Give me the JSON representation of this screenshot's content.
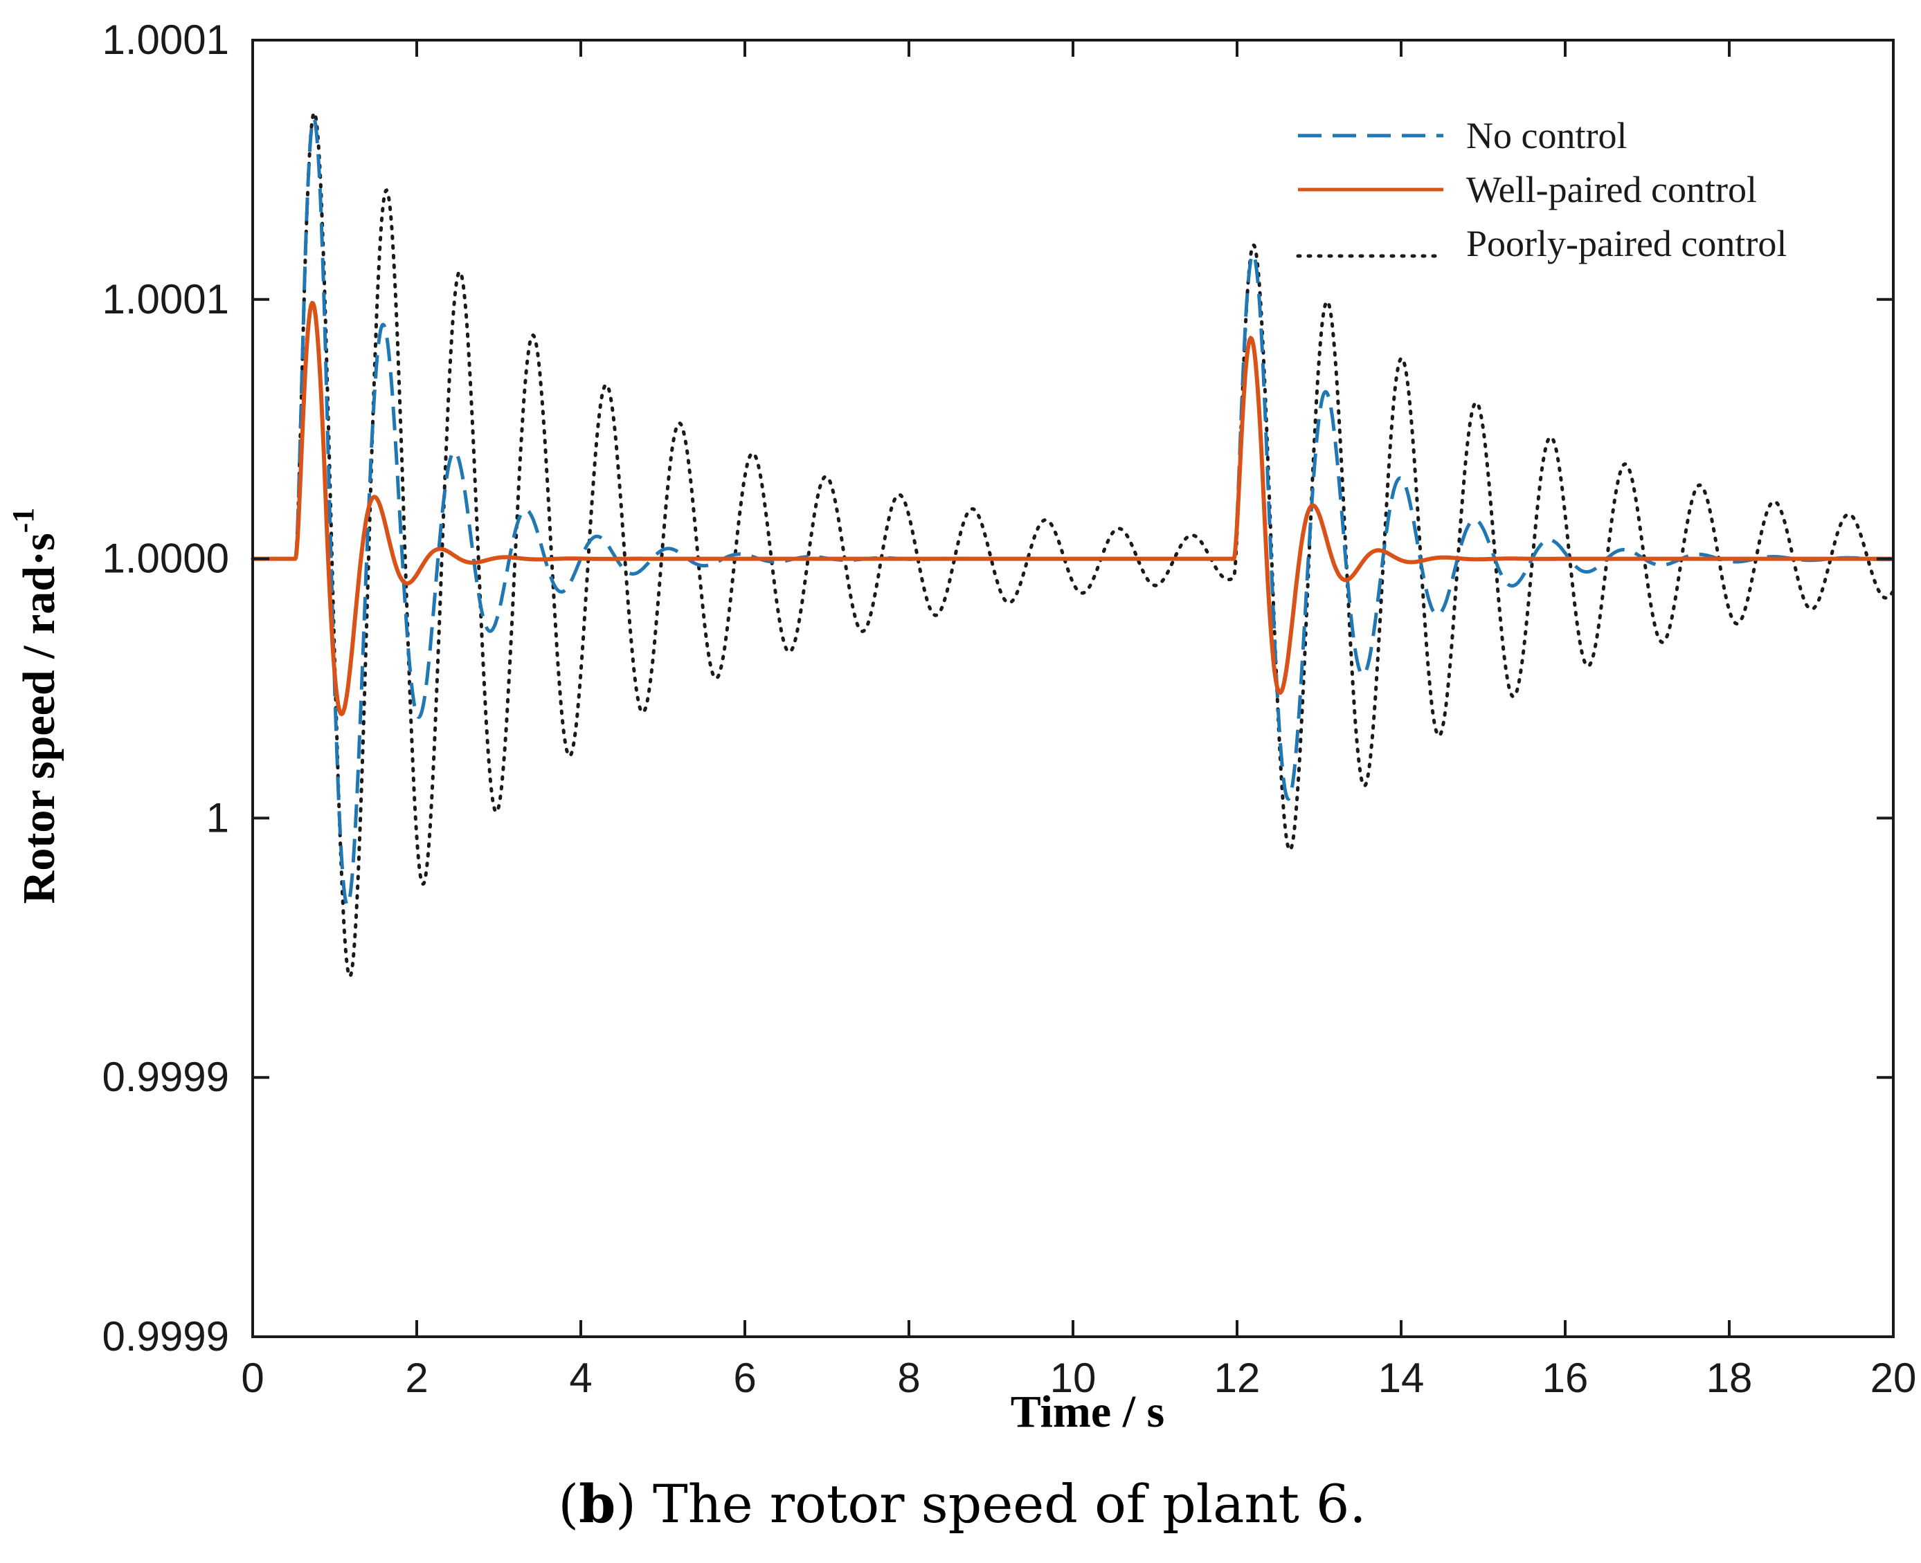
{
  "chart_data": {
    "type": "line",
    "title": "",
    "xlabel": "Time / s",
    "ylabel": "Rotor speed / rad·s",
    "ylabel_superscript": "-1",
    "xlim": [
      0,
      20
    ],
    "ylim": [
      0.99985,
      1.0001
    ],
    "x_ticks": [
      0,
      2,
      4,
      6,
      8,
      10,
      12,
      14,
      16,
      18,
      20
    ],
    "x_tick_labels": [
      "0",
      "2",
      "4",
      "6",
      "8",
      "10",
      "12",
      "14",
      "16",
      "18",
      "20"
    ],
    "y_ticks": [
      0.99985,
      0.9999,
      0.99995,
      1.0,
      1.00005,
      1.0001
    ],
    "y_tick_labels": [
      "0.9999",
      "0.9999",
      "1",
      "1.0000",
      "1.0001",
      "1.0001"
    ],
    "grid": false,
    "legend_position": "top-right",
    "series": [
      {
        "name": "No control",
        "color": "#1f77b4",
        "style": "dashed",
        "disturbances": [
          {
            "t0": 0.52,
            "peak": 1.000087,
            "trough": 0.999927,
            "freq": 1.15,
            "decay": 0.9
          },
          {
            "t0": 11.96,
            "peak": 1.00006,
            "trough": 0.999944,
            "freq": 1.1,
            "decay": 0.8
          }
        ]
      },
      {
        "name": "Well-paired control",
        "color": "#d95319",
        "style": "solid",
        "disturbances": [
          {
            "t0": 0.52,
            "peak": 1.000051,
            "trough": 0.99998,
            "freq": 1.25,
            "decay": 2.3
          },
          {
            "t0": 11.96,
            "peak": 1.000044,
            "trough": 0.999986,
            "freq": 1.25,
            "decay": 2.3
          }
        ]
      },
      {
        "name": "Poorly-paired control",
        "color": "#1a1a1a",
        "style": "dotted",
        "disturbances": [
          {
            "t0": 0.52,
            "peak": 1.000088,
            "trough": 0.999922,
            "freq": 1.12,
            "decay": 0.28
          },
          {
            "t0": 11.96,
            "peak": 1.00006,
            "trough": 0.999952,
            "freq": 1.1,
            "decay": 0.28
          }
        ]
      }
    ]
  },
  "caption": {
    "letter": "b",
    "text": ") The rotor speed of plant 6."
  }
}
